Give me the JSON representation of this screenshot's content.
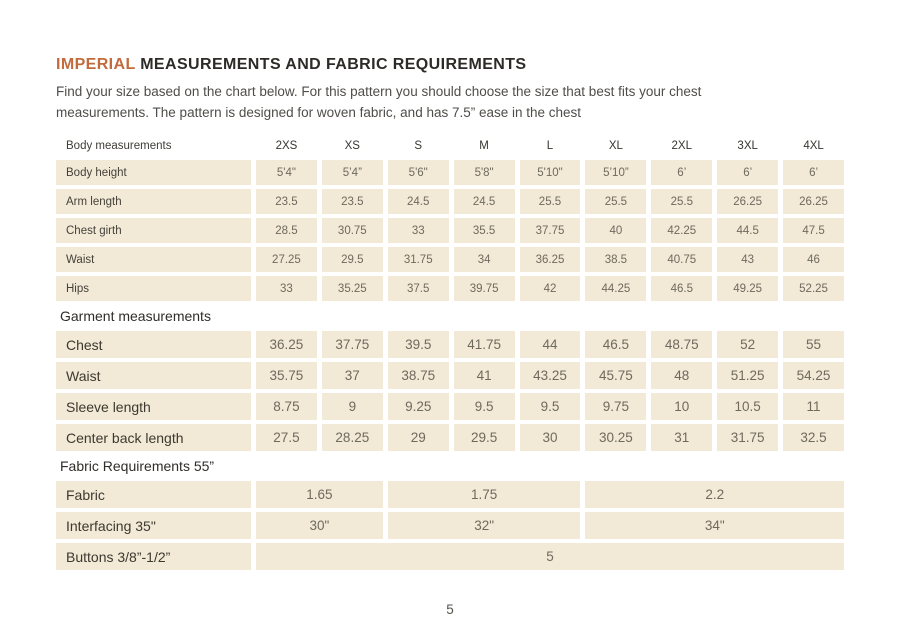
{
  "header": {
    "title_highlight": "IMPERIAL",
    "title_rest": " MEASUREMENTS AND FABRIC REQUIREMENTS",
    "subtitle_line1": "Find your size based on the chart below. For this pattern you should choose the size that best fits your chest",
    "subtitle_line2": "measurements. The pattern is designed for woven fabric, and has 7.5” ease in the chest"
  },
  "colors": {
    "accent": "#C26B3C",
    "cell_bg": "#F2E9D7"
  },
  "table": {
    "sizes": [
      "2XS",
      "XS",
      "S",
      "M",
      "L",
      "XL",
      "2XL",
      "3XL",
      "4XL"
    ],
    "body_section": {
      "header": "Body measurements",
      "rows": [
        {
          "label": "Body height",
          "values": [
            "5'4\"",
            "5’4”",
            "5'6\"",
            "5'8\"",
            "5'10\"",
            "5’10”",
            "6’",
            "6’",
            "6’"
          ]
        },
        {
          "label": "Arm length",
          "values": [
            "23.5",
            "23.5",
            "24.5",
            "24.5",
            "25.5",
            "25.5",
            "25.5",
            "26.25",
            "26.25"
          ]
        },
        {
          "label": "Chest girth",
          "values": [
            "28.5",
            "30.75",
            "33",
            "35.5",
            "37.75",
            "40",
            "42.25",
            "44.5",
            "47.5"
          ]
        },
        {
          "label": "Waist",
          "values": [
            "27.25",
            "29.5",
            "31.75",
            "34",
            "36.25",
            "38.5",
            "40.75",
            "43",
            "46"
          ]
        },
        {
          "label": "Hips",
          "values": [
            "33",
            "35.25",
            "37.5",
            "39.75",
            "42",
            "44.25",
            "46.5",
            "49.25",
            "52.25"
          ]
        }
      ]
    },
    "garment_section": {
      "header": "Garment measurements",
      "rows": [
        {
          "label": "Chest",
          "values": [
            "36.25",
            "37.75",
            "39.5",
            "41.75",
            "44",
            "46.5",
            "48.75",
            "52",
            "55"
          ]
        },
        {
          "label": "Waist",
          "values": [
            "35.75",
            "37",
            "38.75",
            "41",
            "43.25",
            "45.75",
            "48",
            "51.25",
            "54.25"
          ]
        },
        {
          "label": "Sleeve length",
          "values": [
            "8.75",
            "9",
            "9.25",
            "9.5",
            "9.5",
            "9.75",
            "10",
            "10.5",
            "11"
          ]
        },
        {
          "label": "Center back length",
          "values": [
            "27.5",
            "28.25",
            "29",
            "29.5",
            "30",
            "30.25",
            "31",
            "31.75",
            "32.5"
          ]
        }
      ]
    },
    "fabric_section": {
      "header": "Fabric Requirements 55”",
      "fabric_row": {
        "label": "Fabric",
        "values": [
          "1.65",
          "1.75",
          "2.2"
        ]
      },
      "interfacing_row": {
        "label": "Interfacing 35\"",
        "values": [
          "30\"",
          "32\"",
          "34\""
        ]
      },
      "buttons_row": {
        "label": "Buttons 3/8”-1/2”",
        "value": "5"
      }
    }
  },
  "footer": {
    "page_number": "5"
  }
}
